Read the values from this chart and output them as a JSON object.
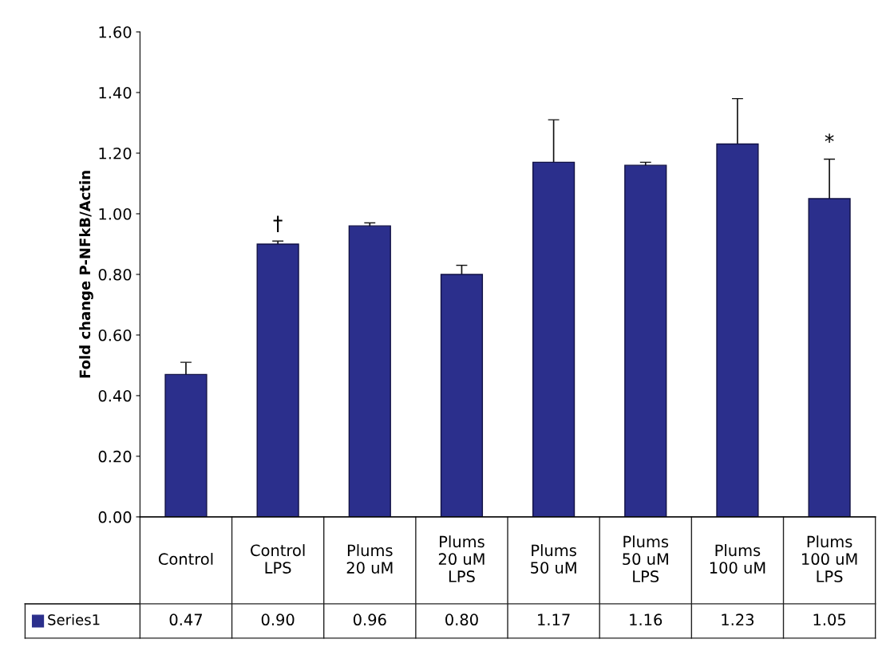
{
  "chart_data": {
    "type": "bar",
    "ylabel": "Fold change P-NFkB/Actin",
    "categories": [
      "Control",
      "Control\nLPS",
      "Plums\n20 uM",
      "Plums\n20 uM\nLPS",
      "Plums\n50 uM",
      "Plums\n50 uM\nLPS",
      "Plums\n100 uM",
      "Plums\n100 uM\nLPS"
    ],
    "series": [
      {
        "name": "Series1",
        "color": "#2b2f8c",
        "values": [
          0.47,
          0.9,
          0.96,
          0.8,
          1.17,
          1.16,
          1.23,
          1.05
        ],
        "errors": [
          0.04,
          0.01,
          0.01,
          0.03,
          0.14,
          0.01,
          0.15,
          0.13
        ],
        "value_labels": [
          "0.47",
          "0.90",
          "0.96",
          "0.80",
          "1.17",
          "1.16",
          "1.23",
          "1.05"
        ]
      }
    ],
    "ylim": [
      0,
      1.6
    ],
    "yticks": [
      {
        "value": 0,
        "label": "0.00"
      },
      {
        "value": 0.2,
        "label": "0.20"
      },
      {
        "value": 0.4,
        "label": "0.40"
      },
      {
        "value": 0.6,
        "label": "0.60"
      },
      {
        "value": 0.8,
        "label": "0.80"
      },
      {
        "value": 1.0,
        "label": "1.00"
      },
      {
        "value": 1.2,
        "label": "1.20"
      },
      {
        "value": 1.4,
        "label": "1.40"
      },
      {
        "value": 1.6,
        "label": "1.60"
      }
    ],
    "annotations": [
      {
        "text": "†",
        "x": "Control\nLPS",
        "y": 0.9
      },
      {
        "text": "*",
        "x": "Plums\n100 uM\nLPS",
        "y": 1.05
      }
    ],
    "legend": "bottom",
    "grid": false
  }
}
